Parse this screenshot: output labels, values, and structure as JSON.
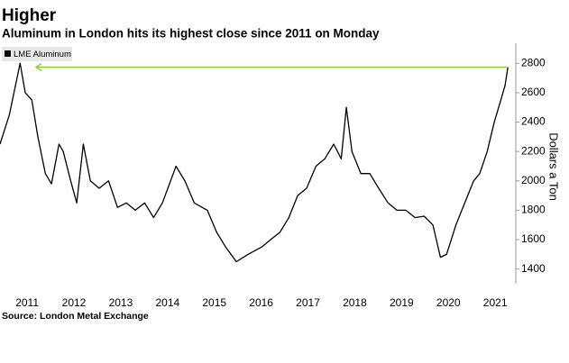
{
  "chart_data": {
    "type": "line",
    "title": "Higher",
    "subtitle": "Aluminum in London hits its highest close since 2011 on Monday",
    "source": "Source: London Metal Exchange",
    "y_axis_label": "Dollars a Ton",
    "x": [
      2010.92,
      2011.12,
      2011.35,
      2011.46,
      2011.6,
      2011.73,
      2011.89,
      2012.02,
      2012.18,
      2012.27,
      2012.43,
      2012.56,
      2012.7,
      2012.85,
      2013.04,
      2013.24,
      2013.43,
      2013.62,
      2013.81,
      2014.01,
      2014.2,
      2014.39,
      2014.68,
      2014.87,
      2015.07,
      2015.35,
      2015.55,
      2015.74,
      2015.97,
      2016.22,
      2016.51,
      2016.7,
      2016.9,
      2017.09,
      2017.28,
      2017.47,
      2017.67,
      2017.86,
      2018.05,
      2018.21,
      2018.32,
      2018.44,
      2018.63,
      2018.82,
      2019.01,
      2019.21,
      2019.4,
      2019.59,
      2019.79,
      2019.98,
      2020.17,
      2020.33,
      2020.46,
      2020.66,
      2020.85,
      2021.04,
      2021.17,
      2021.33,
      2021.48,
      2021.62,
      2021.71,
      2021.77
    ],
    "series": [
      {
        "name": "LME Aluminum",
        "color": "#000000",
        "values": [
          2250,
          2450,
          2800,
          2600,
          2550,
          2300,
          2050,
          1980,
          2250,
          2200,
          2000,
          1850,
          2250,
          2000,
          1950,
          2000,
          1820,
          1850,
          1800,
          1850,
          1750,
          1850,
          2100,
          2000,
          1850,
          1800,
          1650,
          1550,
          1450,
          1500,
          1550,
          1600,
          1650,
          1750,
          1900,
          1950,
          2100,
          2150,
          2250,
          2150,
          2500,
          2200,
          2050,
          2050,
          1950,
          1850,
          1800,
          1800,
          1750,
          1760,
          1700,
          1480,
          1500,
          1700,
          1850,
          2000,
          2050,
          2200,
          2400,
          2550,
          2650,
          2774
        ]
      }
    ],
    "reference_line": {
      "value": 2774,
      "color": "#7ed321"
    },
    "xlim": [
      2010.92,
      2021.94
    ],
    "xticks": [
      {
        "value": 2011.5,
        "label": "2011"
      },
      {
        "value": 2012.5,
        "label": "2012"
      },
      {
        "value": 2013.5,
        "label": "2013"
      },
      {
        "value": 2014.5,
        "label": "2014"
      },
      {
        "value": 2015.5,
        "label": "2015"
      },
      {
        "value": 2016.5,
        "label": "2016"
      },
      {
        "value": 2017.5,
        "label": "2017"
      },
      {
        "value": 2018.5,
        "label": "2018"
      },
      {
        "value": 2019.5,
        "label": "2019"
      },
      {
        "value": 2020.5,
        "label": "2020"
      },
      {
        "value": 2021.5,
        "label": "2021"
      }
    ],
    "ylim": [
      1300,
      2900
    ],
    "yticks": [
      1400,
      1600,
      1800,
      2000,
      2200,
      2400,
      2600,
      2800
    ],
    "legend": "top-left"
  }
}
